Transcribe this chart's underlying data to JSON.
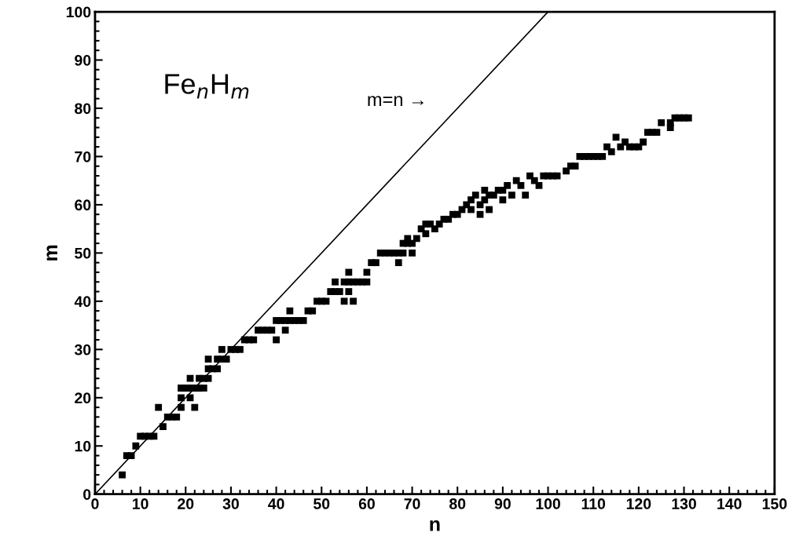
{
  "chart_data": {
    "type": "scatter",
    "xlabel": "n",
    "ylabel": "m",
    "annotations": [
      "Fe$_{n}$H$_{m}$",
      "m=n →"
    ],
    "xlim": [
      0,
      150
    ],
    "ylim": [
      0,
      100
    ],
    "xticks": [
      0,
      10,
      20,
      30,
      40,
      50,
      60,
      70,
      80,
      90,
      100,
      110,
      120,
      130,
      140,
      150
    ],
    "yticks": [
      0,
      10,
      20,
      30,
      40,
      50,
      60,
      70,
      80,
      90,
      100
    ],
    "grid": false,
    "legend": false,
    "series": [
      {
        "marker": "square",
        "color": "#000000",
        "x": [
          6,
          7,
          8,
          9,
          10,
          11,
          12,
          13,
          14,
          15,
          16,
          17,
          18,
          19,
          19,
          19,
          20,
          21,
          21,
          21,
          22,
          22,
          23,
          23,
          24,
          24,
          25,
          25,
          25,
          26,
          27,
          27,
          28,
          28,
          29,
          30,
          31,
          32,
          33,
          34,
          35,
          36,
          37,
          38,
          39,
          40,
          40,
          41,
          42,
          42,
          43,
          43,
          44,
          45,
          46,
          47,
          48,
          49,
          50,
          51,
          52,
          53,
          53,
          54,
          55,
          55,
          56,
          56,
          56,
          57,
          57,
          58,
          59,
          60,
          60,
          61,
          62,
          63,
          64,
          65,
          66,
          67,
          67,
          68,
          68,
          69,
          69,
          70,
          70,
          71,
          72,
          73,
          73,
          74,
          75,
          76,
          77,
          78,
          79,
          80,
          81,
          82,
          83,
          83,
          84,
          85,
          85,
          86,
          86,
          87,
          87,
          88,
          89,
          90,
          90,
          91,
          92,
          93,
          94,
          95,
          96,
          97,
          98,
          99,
          100,
          101,
          102,
          104,
          105,
          106,
          107,
          108,
          109,
          110,
          111,
          112,
          113,
          114,
          115,
          116,
          117,
          118,
          119,
          120,
          121,
          122,
          123,
          124,
          125,
          127,
          127,
          128,
          129,
          130,
          131
        ],
        "values": [
          4,
          8,
          8,
          10,
          12,
          12,
          12,
          12,
          18,
          14,
          16,
          16,
          16,
          18,
          20,
          22,
          22,
          22,
          20,
          24,
          18,
          22,
          22,
          24,
          22,
          24,
          24,
          26,
          28,
          26,
          26,
          28,
          28,
          30,
          28,
          30,
          30,
          30,
          32,
          32,
          32,
          34,
          34,
          34,
          34,
          32,
          36,
          36,
          34,
          36,
          38,
          36,
          36,
          36,
          36,
          38,
          38,
          40,
          40,
          40,
          42,
          42,
          44,
          42,
          40,
          44,
          42,
          44,
          46,
          40,
          44,
          44,
          44,
          44,
          46,
          48,
          48,
          50,
          50,
          50,
          50,
          50,
          48,
          52,
          50,
          52,
          53,
          52,
          50,
          53,
          55,
          54,
          56,
          56,
          55,
          56,
          57,
          57,
          58,
          58,
          59,
          60,
          59,
          61,
          62,
          60,
          58,
          61,
          63,
          62,
          59,
          62,
          63,
          61,
          63,
          64,
          62,
          65,
          64,
          62,
          66,
          65,
          64,
          66,
          66,
          66,
          66,
          67,
          68,
          68,
          70,
          70,
          70,
          70,
          70,
          70,
          72,
          71,
          74,
          72,
          73,
          72,
          72,
          72,
          73,
          75,
          75,
          75,
          77,
          76,
          77,
          78,
          78,
          78,
          78
        ]
      },
      {
        "type": "line",
        "marker": "none",
        "line_style": "solid",
        "color": "#000000",
        "x": [
          0,
          100
        ],
        "values": [
          0,
          100
        ]
      }
    ]
  }
}
